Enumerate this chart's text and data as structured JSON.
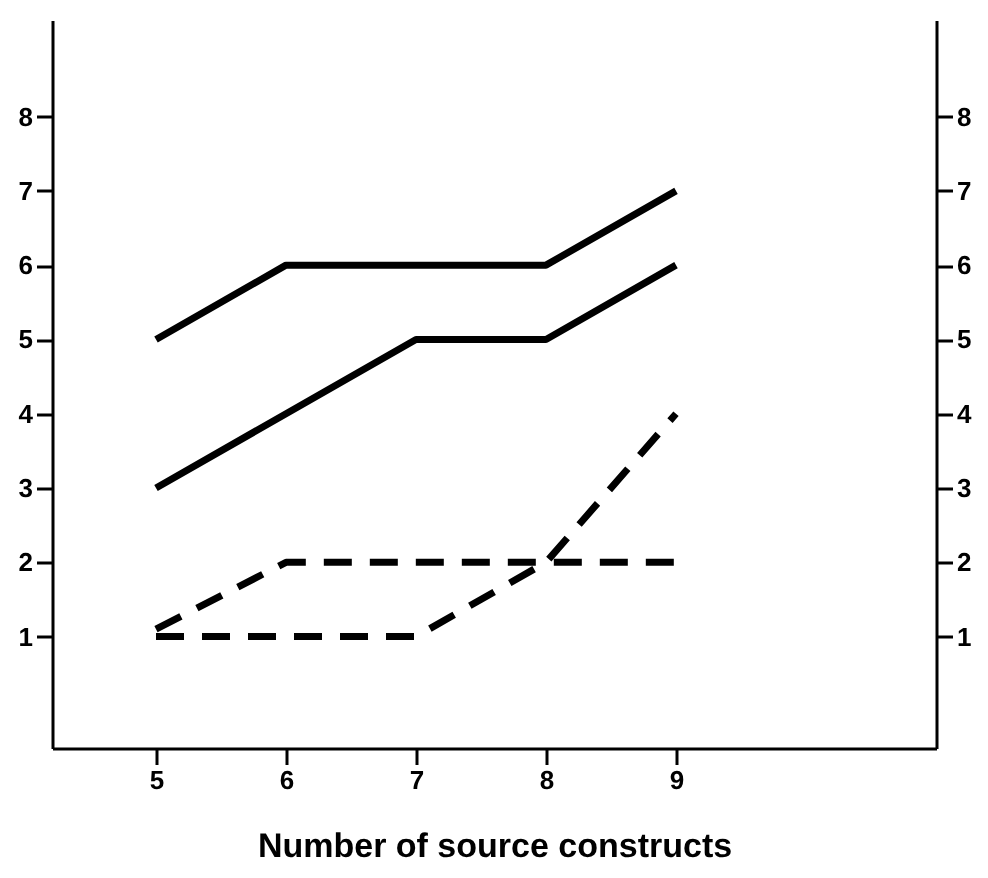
{
  "chart_data": {
    "type": "line",
    "xlabel": "Number of source constructs",
    "x": [
      5,
      6,
      7,
      8,
      9
    ],
    "series": [
      {
        "color": "#000000",
        "line_style": "solid",
        "values": [
          5,
          6,
          6,
          6,
          7
        ]
      },
      {
        "color": "#000000",
        "line_style": "solid",
        "values": [
          3,
          4,
          5,
          5,
          6
        ]
      },
      {
        "color": "#000000",
        "line_style": "dashed",
        "values": [
          1.1,
          2,
          2,
          2,
          2
        ]
      },
      {
        "color": "#000000",
        "line_style": "dashed",
        "values": [
          1,
          1,
          1,
          2,
          4
        ]
      }
    ],
    "xlim": [
      4.2,
      11
    ],
    "xticks": [
      5,
      6,
      7,
      8,
      9
    ],
    "ylim": [
      -0.5,
      9.3
    ],
    "yticks": [
      1,
      2,
      3,
      4,
      5,
      6,
      7,
      8
    ],
    "y2lim": [
      -0.5,
      9.3
    ],
    "y2ticks": [
      1,
      2,
      3,
      4,
      5,
      6,
      7,
      8
    ],
    "grid": false,
    "marker": "none"
  }
}
